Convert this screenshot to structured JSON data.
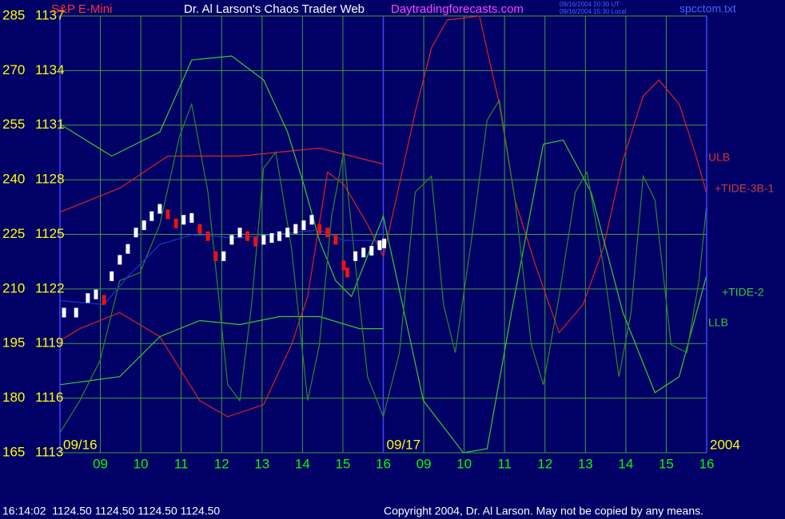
{
  "chart_data": {
    "type": "line",
    "instrument": "S&P E-Mini",
    "title": "Dr. Al Larson's Chaos Trader Web",
    "site": "Daytradingforecasts.com",
    "timestamps": [
      "09/16/2004 20:30 UT",
      "09/16/2004 15:30 Local"
    ],
    "file": "spcctom.txt",
    "status_line": "16:14:02  1124.50 1124.50 1124.50 1124.50",
    "copyright": "Copyright 2004, Dr. Al Larson. May not be copied by any means.",
    "xlim": [
      0,
      16
    ],
    "xticks": [
      {
        "value": 1,
        "label": "09"
      },
      {
        "value": 2,
        "label": "10"
      },
      {
        "value": 3,
        "label": "11"
      },
      {
        "value": 4,
        "label": "12"
      },
      {
        "value": 5,
        "label": "13"
      },
      {
        "value": 6,
        "label": "14"
      },
      {
        "value": 7,
        "label": "15"
      },
      {
        "value": 8,
        "label": "16"
      },
      {
        "value": 9,
        "label": "09"
      },
      {
        "value": 10,
        "label": "10"
      },
      {
        "value": 11,
        "label": "11"
      },
      {
        "value": 12,
        "label": "12"
      },
      {
        "value": 13,
        "label": "13"
      },
      {
        "value": 14,
        "label": "14"
      },
      {
        "value": 15,
        "label": "15"
      },
      {
        "value": 16,
        "label": "16"
      }
    ],
    "day_labels": [
      {
        "value": 0,
        "label": "09/16"
      },
      {
        "value": 8,
        "label": "09/17"
      },
      {
        "value": 16,
        "label": "2004"
      }
    ],
    "ylim": [
      1113,
      1137
    ],
    "yticks": [
      1113,
      1116,
      1119,
      1122,
      1125,
      1128,
      1131,
      1134,
      1137
    ],
    "y2lim": [
      165,
      285
    ],
    "y2ticks": [
      165,
      180,
      195,
      210,
      225,
      240,
      255,
      270,
      285
    ],
    "grid": true,
    "grid_color": "#3f9f3f",
    "line_labels": [
      {
        "text": "ULB",
        "color": "#e03030"
      },
      {
        "text": "+TIDE-3B-1",
        "color": "#c04040"
      },
      {
        "text": "+TIDE-2",
        "color": "#33cc33"
      },
      {
        "text": "LLB",
        "color": "#33cc33"
      }
    ],
    "series": [
      {
        "color": "#dd2222",
        "axis": "y2",
        "x": [
          0,
          0.49,
          1.48,
          2.47,
          3.46,
          4.15,
          5.04,
          5.73,
          6.13,
          6.62,
          7.02,
          7.61,
          8.0,
          8.4,
          8.79,
          9.19,
          9.58,
          10.38,
          10.87,
          11.26,
          11.76,
          12.35,
          12.94,
          13.44,
          13.93,
          14.43,
          14.82,
          15.32,
          15.71,
          15.99
        ],
        "values": [
          195.8,
          199.1,
          203.5,
          196.9,
          179.3,
          174.9,
          178.2,
          194.7,
          207.9,
          242.1,
          238.8,
          227.7,
          218.9,
          238.8,
          258.6,
          276.2,
          283.9,
          285,
          260.8,
          234.4,
          216.7,
          198,
          205.7,
          221.1,
          245.4,
          263,
          267.4,
          260.8,
          247.6,
          236.6
        ]
      },
      {
        "color": "#dd2222",
        "axis": "y2",
        "x": [
          0,
          1.48,
          2.67,
          4.45,
          6.42,
          8.0
        ],
        "values": [
          231.1,
          237.7,
          246.5,
          246.5,
          248.7,
          244.3
        ]
      },
      {
        "color": "#33cc33",
        "axis": "y2",
        "x": [
          0,
          1.28,
          2.47,
          3.26,
          4.25,
          5.04,
          5.63,
          6.03,
          6.42,
          6.82,
          7.21,
          8.0,
          8.99,
          9.98,
          10.57,
          11.17,
          11.96,
          12.45,
          13.14,
          13.93,
          14.72,
          15.32,
          15.99
        ],
        "values": [
          255.3,
          246.5,
          253.1,
          272.9,
          274,
          267.4,
          253.1,
          238.8,
          223.3,
          212.3,
          207.9,
          230,
          179.3,
          165,
          166.1,
          203.5,
          249.8,
          250.9,
          236.6,
          203.5,
          181.5,
          185.9,
          213.4
        ]
      },
      {
        "color": "#33cc33",
        "axis": "y2",
        "x": [
          0,
          1.48,
          2.47,
          3.46,
          4.45,
          5.43,
          6.42,
          7.41,
          8.0
        ],
        "values": [
          183.7,
          185.9,
          196.9,
          201.3,
          200.2,
          202.4,
          202.4,
          199.1,
          199.1
        ]
      },
      {
        "color": "#2a8a2a",
        "axis": "y2",
        "x": [
          0,
          0.49,
          0.99,
          1.48,
          1.98,
          2.47,
          2.96,
          3.26,
          3.66,
          4.15,
          4.45,
          4.74,
          5.04,
          5.34,
          5.73,
          6.13,
          6.42,
          6.72,
          7.02,
          7.31,
          7.61,
          8.0,
          8.4,
          8.79,
          9.19,
          9.49,
          9.78,
          10.18,
          10.57,
          10.87,
          11.26,
          11.66,
          11.96,
          12.35,
          12.75,
          13.04,
          13.44,
          13.83,
          14.13,
          14.43,
          14.72,
          15.12,
          15.51,
          15.81,
          15.99
        ],
        "values": [
          170.5,
          179.3,
          190.3,
          212.3,
          214.5,
          227.7,
          252,
          260.8,
          236.6,
          183.7,
          179.3,
          205.7,
          243.2,
          247.6,
          221.1,
          179.3,
          194.7,
          230,
          247.6,
          216.7,
          185.9,
          174.9,
          192.5,
          236.6,
          241,
          205.7,
          192.5,
          223.3,
          256.4,
          261.9,
          234.4,
          194.7,
          183.7,
          207.9,
          236.6,
          242.1,
          216.7,
          185.9,
          203.5,
          241,
          234.4,
          194.7,
          192.5,
          212.3,
          232.2
        ]
      },
      {
        "color": "#2233cc",
        "axis": "y2",
        "x": [
          0,
          1.09,
          1.68,
          2.47,
          3.26,
          4.45,
          6.42,
          7.02,
          8.0
        ],
        "values": [
          206.8,
          205.7,
          213.4,
          222.2,
          224.9,
          224,
          226.2,
          223.3,
          223.3
        ]
      },
      {
        "color": "#ffffff",
        "down_color": "#ee1111",
        "style": "bars",
        "x": [
          0.1,
          0.4,
          0.69,
          0.89,
          1.09,
          1.28,
          1.48,
          1.68,
          1.88,
          2.08,
          2.27,
          2.47,
          2.67,
          2.87,
          3.06,
          3.26,
          3.46,
          3.66,
          3.85,
          4.05,
          4.25,
          4.45,
          4.64,
          4.84,
          5.04,
          5.24,
          5.43,
          5.63,
          5.83,
          6.03,
          6.23,
          6.42,
          6.62,
          6.82,
          7.02,
          7.11,
          7.31,
          7.51,
          7.71,
          7.91,
          8.02
        ],
        "values": [
          1120.7,
          1120.7,
          1121.5,
          1121.7,
          1121.4,
          1122.7,
          1123.6,
          1124.2,
          1125.1,
          1125.5,
          1126.0,
          1126.4,
          1126.1,
          1125.6,
          1125.8,
          1125.9,
          1125.3,
          1124.9,
          1123.8,
          1123.8,
          1124.7,
          1125.1,
          1124.9,
          1124.6,
          1124.7,
          1124.8,
          1124.9,
          1125.1,
          1125.3,
          1125.5,
          1125.8,
          1125.3,
          1125.1,
          1124.7,
          1123.3,
          1122.9,
          1123.8,
          1124.0,
          1124.1,
          1124.4,
          1124.5
        ]
      }
    ]
  }
}
